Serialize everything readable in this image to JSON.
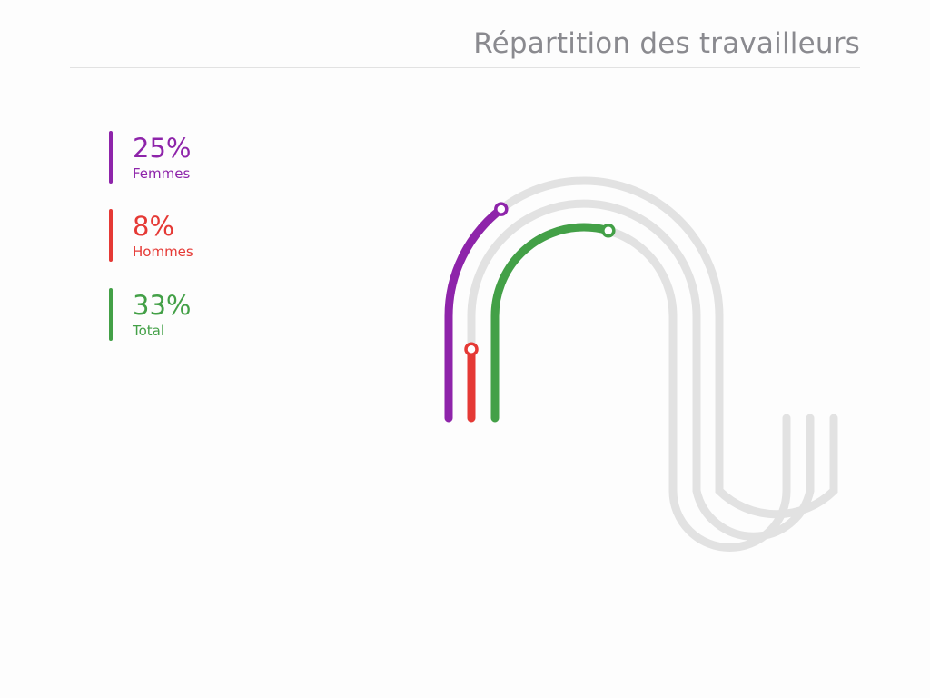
{
  "header": {
    "title": "Répartition des travailleurs"
  },
  "colors": {
    "track": "#e2e2e2",
    "femmes": "#8e24aa",
    "hommes": "#e53935",
    "total": "#43a047",
    "title": "#8a8a8f"
  },
  "chart_data": {
    "type": "radial-track-progress",
    "title": "Répartition des travailleurs",
    "series": [
      {
        "name": "Femmes",
        "value": 25,
        "value_label": "25%",
        "color": "#8e24aa"
      },
      {
        "name": "Hommes",
        "value": 8,
        "value_label": "8%",
        "color": "#e53935"
      },
      {
        "name": "Total",
        "value": 33,
        "value_label": "33%",
        "color": "#43a047"
      }
    ],
    "max": 100,
    "unit": "%"
  }
}
